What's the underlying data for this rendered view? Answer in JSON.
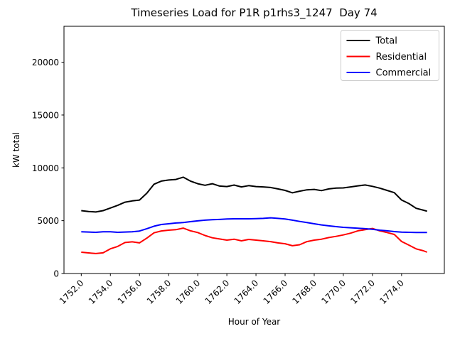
{
  "window": {
    "background": "#ffffff"
  },
  "chart_data": {
    "type": "line",
    "title": "Timeseries Load for P1R p1rhs3_1247  Day 74",
    "xlabel": "Hour of Year",
    "ylabel": "kW total",
    "xlim": [
      1750.8125,
      1776.9375
    ],
    "ylim": [
      0,
      23400
    ],
    "grid": false,
    "legend_position": "upper right",
    "legend_entries": [
      "Total",
      "Residential",
      "Commercial"
    ],
    "x_ticks": [
      1752,
      1754,
      1756,
      1758,
      1760,
      1762,
      1764,
      1766,
      1768,
      1770,
      1772,
      1774
    ],
    "x_tick_labels": [
      "1752.0",
      "1754.0",
      "1756.0",
      "1758.0",
      "1760.0",
      "1762.0",
      "1764.0",
      "1766.0",
      "1768.0",
      "1770.0",
      "1772.0",
      "1774.0"
    ],
    "y_ticks": [
      0,
      5000,
      10000,
      15000,
      20000
    ],
    "y_tick_labels": [
      "0",
      "5000",
      "10000",
      "15000",
      "20000"
    ],
    "x": [
      1752.0,
      1752.5,
      1753.0,
      1753.5,
      1754.0,
      1754.5,
      1755.0,
      1755.5,
      1756.0,
      1756.5,
      1757.0,
      1757.5,
      1758.0,
      1758.5,
      1759.0,
      1759.5,
      1760.0,
      1760.5,
      1761.0,
      1761.5,
      1762.0,
      1762.5,
      1763.0,
      1763.5,
      1764.0,
      1764.5,
      1765.0,
      1765.5,
      1766.0,
      1766.5,
      1767.0,
      1767.5,
      1768.0,
      1768.5,
      1769.0,
      1769.5,
      1770.0,
      1770.5,
      1771.0,
      1771.5,
      1772.0,
      1772.5,
      1773.0,
      1773.5,
      1774.0,
      1774.5,
      1775.0,
      1775.5,
      1775.75
    ],
    "series": [
      {
        "name": "Total",
        "color": "#000000",
        "values": [
          5950,
          5870,
          5820,
          5950,
          6200,
          6450,
          6750,
          6870,
          6950,
          7600,
          8450,
          8750,
          8850,
          8900,
          9120,
          8750,
          8500,
          8350,
          8500,
          8280,
          8230,
          8370,
          8200,
          8320,
          8230,
          8200,
          8140,
          8010,
          7870,
          7640,
          7790,
          7920,
          7960,
          7850,
          8010,
          8080,
          8100,
          8200,
          8300,
          8380,
          8250,
          8080,
          7870,
          7650,
          6960,
          6620,
          6170,
          5990,
          5900
        ]
      },
      {
        "name": "Residential",
        "color": "#ff0000",
        "values": [
          2020,
          1950,
          1890,
          1960,
          2340,
          2560,
          2930,
          3000,
          2900,
          3350,
          3850,
          4030,
          4100,
          4150,
          4300,
          4040,
          3880,
          3600,
          3380,
          3270,
          3160,
          3250,
          3090,
          3230,
          3160,
          3090,
          3020,
          2900,
          2820,
          2630,
          2720,
          3020,
          3160,
          3250,
          3400,
          3520,
          3650,
          3820,
          4040,
          4150,
          4260,
          4040,
          3880,
          3700,
          3030,
          2690,
          2330,
          2150,
          2020
        ]
      },
      {
        "name": "Commercial",
        "color": "#0000ff",
        "values": [
          3950,
          3930,
          3900,
          3950,
          3950,
          3900,
          3930,
          3950,
          4020,
          4240,
          4480,
          4640,
          4710,
          4780,
          4820,
          4910,
          4980,
          5050,
          5090,
          5120,
          5160,
          5180,
          5180,
          5180,
          5200,
          5220,
          5270,
          5220,
          5160,
          5050,
          4930,
          4820,
          4710,
          4600,
          4510,
          4440,
          4370,
          4330,
          4290,
          4240,
          4180,
          4100,
          4040,
          3970,
          3920,
          3900,
          3880,
          3880,
          3880
        ]
      }
    ]
  }
}
